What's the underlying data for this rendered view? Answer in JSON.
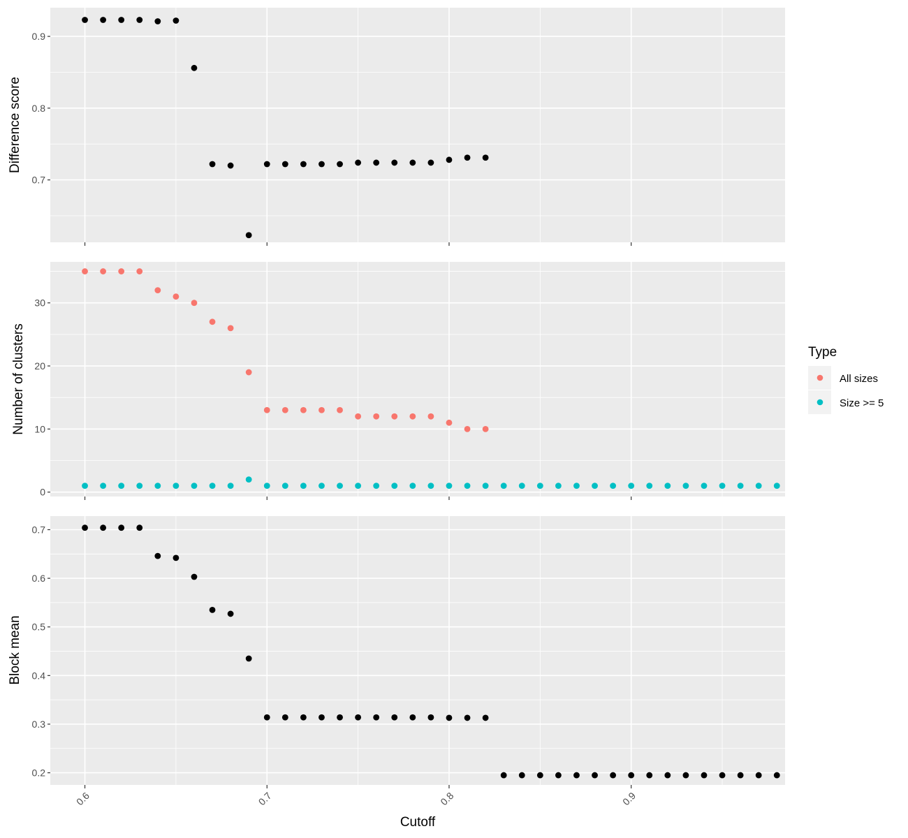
{
  "chart_data": [
    {
      "type": "scatter",
      "ylabel": "Difference score",
      "y_ticks": [
        0.7,
        0.8,
        0.9
      ],
      "ylim": [
        0.613,
        0.94
      ],
      "xlim": [
        0.581,
        0.9845
      ],
      "x_ticks": [
        0.6,
        0.7,
        0.8,
        0.9
      ],
      "show_x_tick_labels": false,
      "grid": true,
      "series": [
        {
          "color": "#000000",
          "points": [
            [
              0.6,
              0.923
            ],
            [
              0.61,
              0.923
            ],
            [
              0.62,
              0.923
            ],
            [
              0.63,
              0.923
            ],
            [
              0.64,
              0.921
            ],
            [
              0.65,
              0.922
            ],
            [
              0.66,
              0.856
            ],
            [
              0.67,
              0.722
            ],
            [
              0.68,
              0.72
            ],
            [
              0.69,
              0.623
            ],
            [
              0.7,
              0.722
            ],
            [
              0.71,
              0.722
            ],
            [
              0.72,
              0.722
            ],
            [
              0.73,
              0.722
            ],
            [
              0.74,
              0.722
            ],
            [
              0.75,
              0.724
            ],
            [
              0.76,
              0.724
            ],
            [
              0.77,
              0.724
            ],
            [
              0.78,
              0.724
            ],
            [
              0.79,
              0.724
            ],
            [
              0.8,
              0.728
            ],
            [
              0.81,
              0.731
            ],
            [
              0.82,
              0.731
            ]
          ]
        }
      ]
    },
    {
      "type": "scatter",
      "ylabel": "Number of clusters",
      "y_ticks": [
        0,
        10,
        20,
        30
      ],
      "ylim": [
        -0.7,
        36.5
      ],
      "xlim": [
        0.581,
        0.9845
      ],
      "x_ticks": [
        0.6,
        0.7,
        0.8,
        0.9
      ],
      "show_x_tick_labels": false,
      "grid": true,
      "series": [
        {
          "name": "All sizes",
          "color": "#F8766D",
          "points": [
            [
              0.6,
              35
            ],
            [
              0.61,
              35
            ],
            [
              0.62,
              35
            ],
            [
              0.63,
              35
            ],
            [
              0.64,
              32
            ],
            [
              0.65,
              31
            ],
            [
              0.66,
              30
            ],
            [
              0.67,
              27
            ],
            [
              0.68,
              26
            ],
            [
              0.69,
              19
            ],
            [
              0.7,
              13
            ],
            [
              0.71,
              13
            ],
            [
              0.72,
              13
            ],
            [
              0.73,
              13
            ],
            [
              0.74,
              13
            ],
            [
              0.75,
              12
            ],
            [
              0.76,
              12
            ],
            [
              0.77,
              12
            ],
            [
              0.78,
              12
            ],
            [
              0.79,
              12
            ],
            [
              0.8,
              11
            ],
            [
              0.81,
              10
            ],
            [
              0.82,
              10
            ]
          ]
        },
        {
          "name": "Size >= 5",
          "color": "#00BFC4",
          "points": [
            [
              0.6,
              1
            ],
            [
              0.61,
              1
            ],
            [
              0.62,
              1
            ],
            [
              0.63,
              1
            ],
            [
              0.64,
              1
            ],
            [
              0.65,
              1
            ],
            [
              0.66,
              1
            ],
            [
              0.67,
              1
            ],
            [
              0.68,
              1
            ],
            [
              0.69,
              2
            ],
            [
              0.7,
              1
            ],
            [
              0.71,
              1
            ],
            [
              0.72,
              1
            ],
            [
              0.73,
              1
            ],
            [
              0.74,
              1
            ],
            [
              0.75,
              1
            ],
            [
              0.76,
              1
            ],
            [
              0.77,
              1
            ],
            [
              0.78,
              1
            ],
            [
              0.79,
              1
            ],
            [
              0.8,
              1
            ],
            [
              0.81,
              1
            ],
            [
              0.82,
              1
            ],
            [
              0.83,
              1
            ],
            [
              0.84,
              1
            ],
            [
              0.85,
              1
            ],
            [
              0.86,
              1
            ],
            [
              0.87,
              1
            ],
            [
              0.88,
              1
            ],
            [
              0.89,
              1
            ],
            [
              0.9,
              1
            ],
            [
              0.91,
              1
            ],
            [
              0.92,
              1
            ],
            [
              0.93,
              1
            ],
            [
              0.94,
              1
            ],
            [
              0.95,
              1
            ],
            [
              0.96,
              1
            ],
            [
              0.97,
              1
            ],
            [
              0.98,
              1
            ]
          ]
        }
      ]
    },
    {
      "type": "scatter",
      "ylabel": "Block mean",
      "y_ticks": [
        0.2,
        0.3,
        0.4,
        0.5,
        0.6,
        0.7
      ],
      "ylim": [
        0.175,
        0.728
      ],
      "xlim": [
        0.581,
        0.9845
      ],
      "x_ticks": [
        0.6,
        0.7,
        0.8,
        0.9
      ],
      "show_x_tick_labels": true,
      "grid": true,
      "series": [
        {
          "color": "#000000",
          "points": [
            [
              0.6,
              0.704
            ],
            [
              0.61,
              0.704
            ],
            [
              0.62,
              0.704
            ],
            [
              0.63,
              0.704
            ],
            [
              0.64,
              0.646
            ],
            [
              0.65,
              0.642
            ],
            [
              0.66,
              0.603
            ],
            [
              0.67,
              0.535
            ],
            [
              0.68,
              0.527
            ],
            [
              0.69,
              0.435
            ],
            [
              0.7,
              0.314
            ],
            [
              0.71,
              0.314
            ],
            [
              0.72,
              0.314
            ],
            [
              0.73,
              0.314
            ],
            [
              0.74,
              0.314
            ],
            [
              0.75,
              0.314
            ],
            [
              0.76,
              0.314
            ],
            [
              0.77,
              0.314
            ],
            [
              0.78,
              0.314
            ],
            [
              0.79,
              0.314
            ],
            [
              0.8,
              0.313
            ],
            [
              0.81,
              0.313
            ],
            [
              0.82,
              0.313
            ],
            [
              0.83,
              0.195
            ],
            [
              0.84,
              0.195
            ],
            [
              0.85,
              0.195
            ],
            [
              0.86,
              0.195
            ],
            [
              0.87,
              0.195
            ],
            [
              0.88,
              0.195
            ],
            [
              0.89,
              0.195
            ],
            [
              0.9,
              0.195
            ],
            [
              0.91,
              0.195
            ],
            [
              0.92,
              0.195
            ],
            [
              0.93,
              0.195
            ],
            [
              0.94,
              0.195
            ],
            [
              0.95,
              0.195
            ],
            [
              0.96,
              0.195
            ],
            [
              0.97,
              0.195
            ],
            [
              0.98,
              0.195
            ]
          ]
        }
      ]
    }
  ],
  "shared": {
    "xlabel": "Cutoff",
    "x_tick_labels": [
      "0.6",
      "0.7",
      "0.8",
      "0.9"
    ]
  },
  "legend": {
    "title": "Type",
    "placement": "right",
    "items": [
      {
        "label": "All sizes",
        "color": "#F8766D"
      },
      {
        "label": "Size >= 5",
        "color": "#00BFC4"
      }
    ]
  },
  "colors": {
    "panel_background": "#EBEBEB",
    "grid": "#FFFFFF",
    "tick_text": "#4D4D4D"
  }
}
